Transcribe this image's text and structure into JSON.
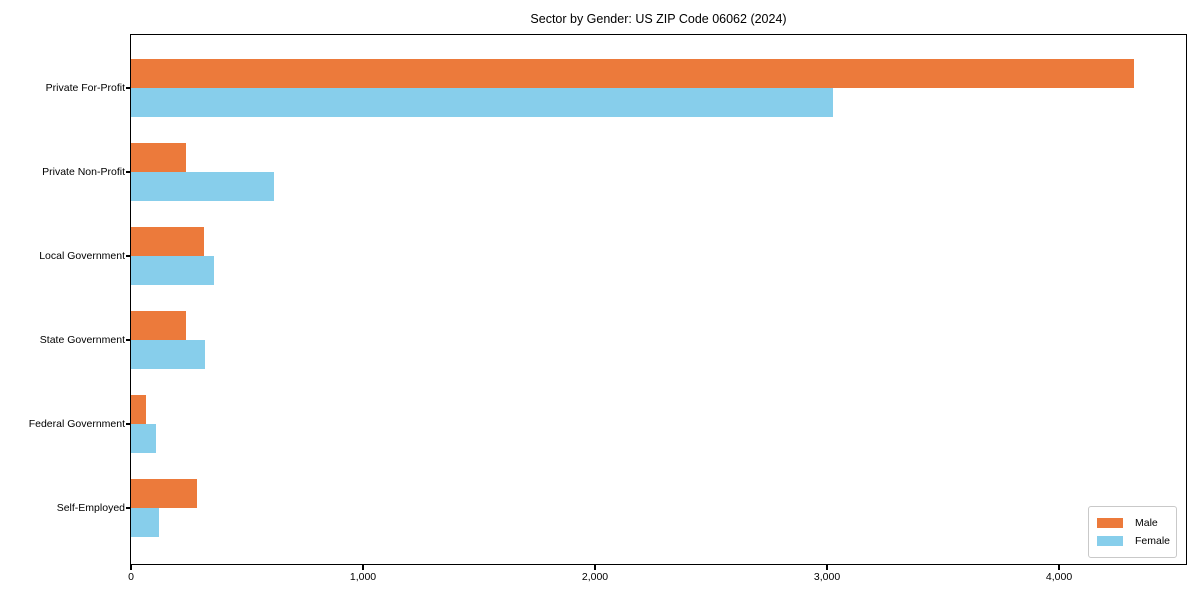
{
  "title": "Sector by Gender: US ZIP Code 06062 (2024)",
  "chart_data": {
    "type": "bar",
    "orientation": "horizontal",
    "title": "Sector by Gender: US ZIP Code 06062 (2024)",
    "categories": [
      "Private For-Profit",
      "Private Non-Profit",
      "Local Government",
      "State Government",
      "Federal Government",
      "Self-Employed"
    ],
    "series": [
      {
        "name": "Male",
        "color": "#EC7A3B",
        "values": [
          4325,
          235,
          313,
          237,
          65,
          283
        ]
      },
      {
        "name": "Female",
        "color": "#87CEEB",
        "values": [
          3025,
          615,
          356,
          319,
          106,
          122
        ]
      }
    ],
    "xlabel": "",
    "ylabel": "",
    "xlim": [
      0,
      4545
    ],
    "xticks": [
      0,
      1000,
      2000,
      3000,
      4000
    ],
    "xtick_labels": [
      "0",
      "1,000",
      "2,000",
      "3,000",
      "4,000"
    ],
    "grid": false,
    "legend_position": "lower right"
  }
}
